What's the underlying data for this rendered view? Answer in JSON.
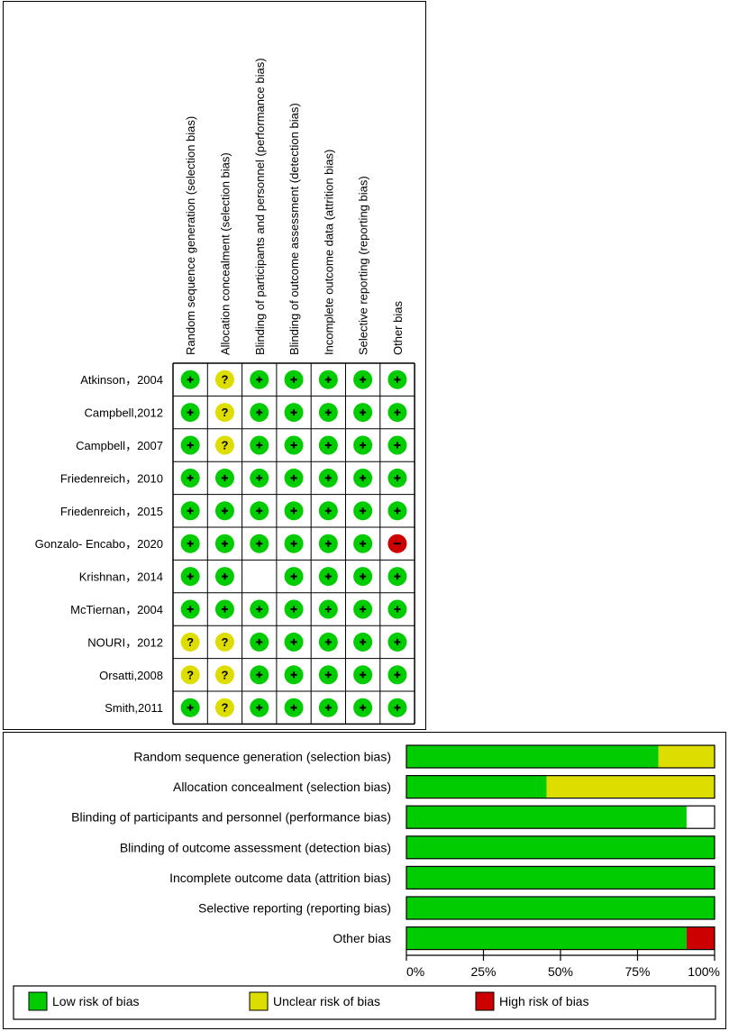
{
  "chart_data": [
    {
      "type": "table",
      "columns": [
        "Random sequence generation (selection bias)",
        "Allocation concealment (selection bias)",
        "Blinding of participants and personnel (performance bias)",
        "Blinding of outcome assessment (detection bias)",
        "Incomplete outcome data (attrition bias)",
        "Selective reporting (reporting bias)",
        "Other bias"
      ],
      "rows": [
        {
          "study": "Atkinson，2004",
          "ratings": [
            "low",
            "unclear",
            "low",
            "low",
            "low",
            "low",
            "low"
          ]
        },
        {
          "study": "Campbell,2012",
          "ratings": [
            "low",
            "unclear",
            "low",
            "low",
            "low",
            "low",
            "low"
          ]
        },
        {
          "study": "Campbell，2007",
          "ratings": [
            "low",
            "unclear",
            "low",
            "low",
            "low",
            "low",
            "low"
          ]
        },
        {
          "study": "Friedenreich，2010",
          "ratings": [
            "low",
            "low",
            "low",
            "low",
            "low",
            "low",
            "low"
          ]
        },
        {
          "study": "Friedenreich，2015",
          "ratings": [
            "low",
            "low",
            "low",
            "low",
            "low",
            "low",
            "low"
          ]
        },
        {
          "study": "Gonzalo- Encabo，2020",
          "ratings": [
            "low",
            "low",
            "low",
            "low",
            "low",
            "low",
            "high"
          ]
        },
        {
          "study": "Krishnan，2014",
          "ratings": [
            "low",
            "low",
            "none",
            "low",
            "low",
            "low",
            "low"
          ]
        },
        {
          "study": "McTiernan，2004",
          "ratings": [
            "low",
            "low",
            "low",
            "low",
            "low",
            "low",
            "low"
          ]
        },
        {
          "study": "NOURI，2012",
          "ratings": [
            "unclear",
            "unclear",
            "low",
            "low",
            "low",
            "low",
            "low"
          ]
        },
        {
          "study": "Orsatti,2008",
          "ratings": [
            "unclear",
            "unclear",
            "low",
            "low",
            "low",
            "low",
            "low"
          ]
        },
        {
          "study": "Smith,2011",
          "ratings": [
            "low",
            "unclear",
            "low",
            "low",
            "low",
            "low",
            "low"
          ]
        }
      ],
      "symbols": {
        "low": "+",
        "unclear": "?",
        "high": "−"
      }
    },
    {
      "type": "bar",
      "orientation": "horizontal-stacked",
      "categories": [
        "Random sequence generation (selection bias)",
        "Allocation concealment (selection bias)",
        "Blinding of participants and personnel (performance bias)",
        "Blinding of outcome assessment (detection bias)",
        "Incomplete outcome data (attrition bias)",
        "Selective reporting (reporting bias)",
        "Other bias"
      ],
      "series": [
        {
          "key": "low",
          "name": "Low risk of bias",
          "color": "#00cc00",
          "values": [
            81.8,
            45.5,
            90.9,
            100,
            100,
            100,
            90.9
          ]
        },
        {
          "key": "unclear",
          "name": "Unclear risk of bias",
          "color": "#dddd00",
          "values": [
            18.2,
            54.5,
            0,
            0,
            0,
            0,
            0
          ]
        },
        {
          "key": "high",
          "name": "High risk of bias",
          "color": "#cc0000",
          "values": [
            0,
            0,
            0,
            0,
            0,
            0,
            9.1
          ]
        }
      ],
      "xlim": [
        0,
        100
      ],
      "xticks": [
        "0%",
        "25%",
        "50%",
        "75%",
        "100%"
      ],
      "legend_position": "bottom"
    }
  ],
  "colors": {
    "low": "#00cc00",
    "unclear": "#dddd00",
    "high": "#cc0000",
    "border": "#000000"
  }
}
